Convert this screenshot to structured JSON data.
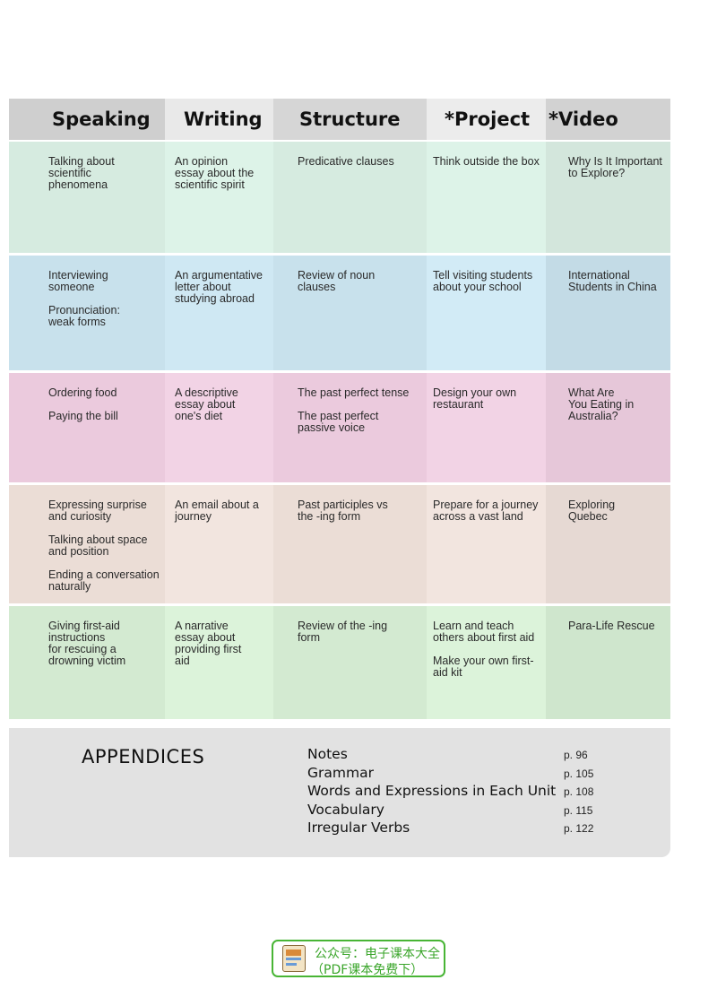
{
  "headers": [
    "Speaking",
    "Writing",
    "Structure",
    "*Project",
    "*Video Time"
  ],
  "rows": [
    {
      "color": "#dcefe6",
      "cells": [
        [
          "Talking about\nscientific\nphenomena"
        ],
        [
          "An opinion\nessay about the\nscientific spirit"
        ],
        [
          "Predicative clauses"
        ],
        [
          "Think outside the box"
        ],
        [
          "Why Is It Important\nto Explore?"
        ]
      ]
    },
    {
      "color": "#cde6f1",
      "cells": [
        [
          "Interviewing\nsomeone",
          "Pronunciation:\nweak forms"
        ],
        [
          "An argumentative\nletter about\nstudying abroad"
        ],
        [
          "Review of noun\nclauses"
        ],
        [
          "Tell visiting students\nabout your school"
        ],
        [
          "International\nStudents in China"
        ]
      ]
    },
    {
      "color": "#efd0e2",
      "cells": [
        [
          "Ordering food",
          "Paying the bill"
        ],
        [
          "A descriptive\nessay about\none's diet"
        ],
        [
          "The past perfect tense",
          "The past perfect\npassive voice"
        ],
        [
          "Design your own\nrestaurant"
        ],
        [
          "What Are\nYou Eating in\nAustralia?"
        ]
      ]
    },
    {
      "color": "#efe2dc",
      "cells": [
        [
          "Expressing surprise\nand curiosity",
          "Talking about space\nand position",
          "Ending a conversation\nnaturally"
        ],
        [
          "An email about a\njourney"
        ],
        [
          "Past participles vs\nthe -ing form"
        ],
        [
          "Prepare for a journey\nacross a vast land"
        ],
        [
          "Exploring\nQuebec"
        ]
      ]
    },
    {
      "color": "#d8eed6",
      "cells": [
        [
          "Giving first-aid\ninstructions\nfor rescuing a\ndrowning victim"
        ],
        [
          "A narrative\nessay about\nproviding first\naid"
        ],
        [
          "Review of the -ing\nform"
        ],
        [
          "Learn and teach\nothers about first aid",
          "Make your own first-\naid kit"
        ],
        [
          "Para-Life Rescue"
        ]
      ]
    }
  ],
  "appendices": {
    "title": "APPENDICES",
    "items": [
      {
        "name": "Notes",
        "page": "p. 96"
      },
      {
        "name": "Grammar",
        "page": "p. 105"
      },
      {
        "name": "Words and Expressions in Each Unit",
        "page": "p. 108"
      },
      {
        "name": "Vocabulary",
        "page": "p. 115"
      },
      {
        "name": "Irregular Verbs",
        "page": "p. 122"
      }
    ]
  },
  "stamp": {
    "line1": "公众号：电子课本大全",
    "line2": "（PDF课本免费下）"
  }
}
